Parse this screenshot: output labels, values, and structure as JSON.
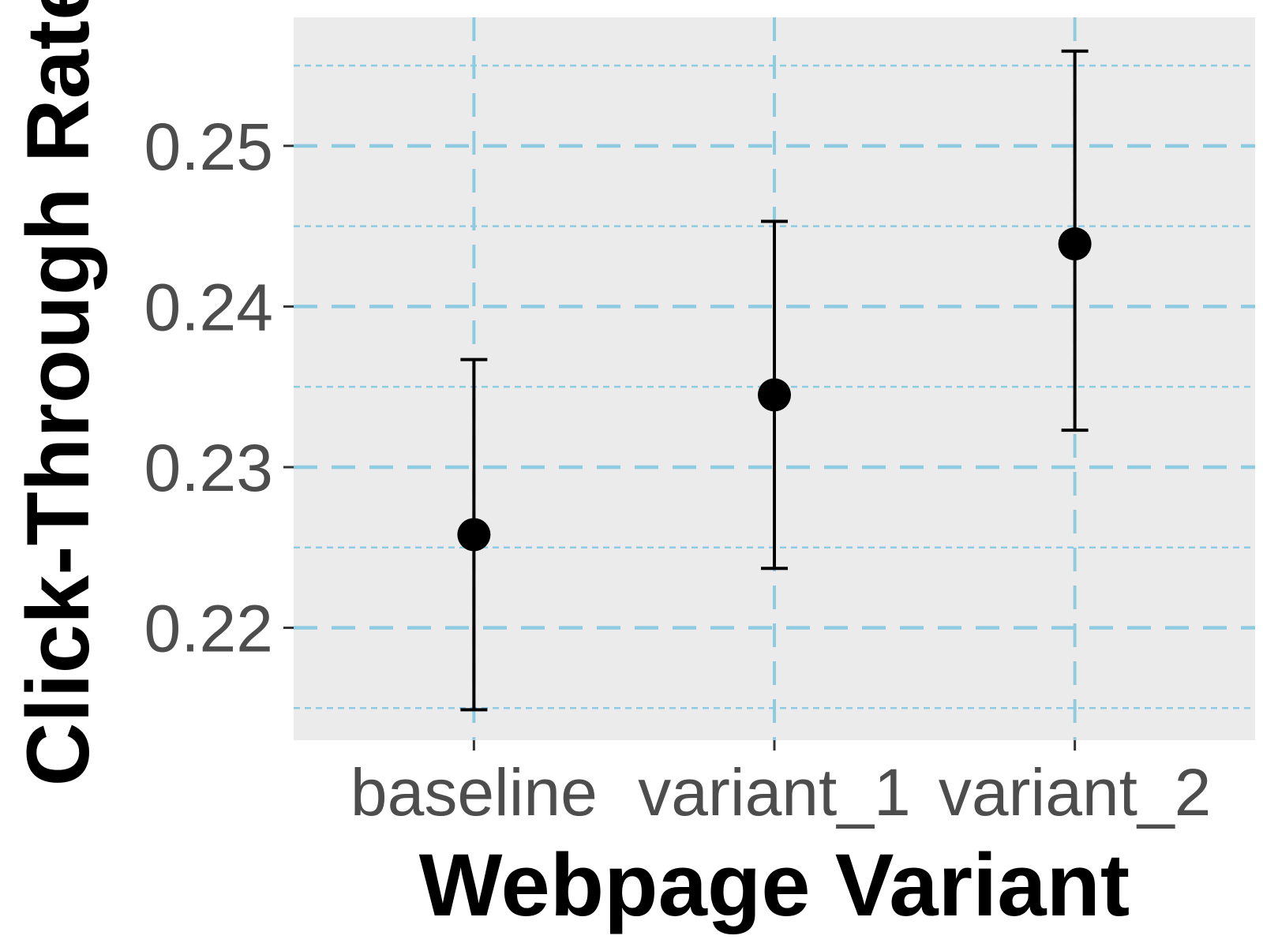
{
  "chart_data": {
    "type": "scatter",
    "title": "",
    "xlabel": "Webpage Variant",
    "ylabel": "Click-Through Rate",
    "categories": [
      "baseline",
      "variant_1",
      "variant_2"
    ],
    "series": [
      {
        "values": [
          0.2258,
          0.2345,
          0.2439
        ],
        "error_low": [
          0.2149,
          0.2237,
          0.2323
        ],
        "error_high": [
          0.2367,
          0.2453,
          0.2559
        ]
      }
    ],
    "ylim": [
      0.213,
      0.258
    ],
    "yticks": [
      0.22,
      0.23,
      0.24,
      0.25
    ],
    "ytick_labels": [
      "0.22",
      "0.23",
      "0.24",
      "0.25"
    ],
    "grid": true,
    "legend": "none"
  },
  "colors": {
    "panel_background": "#ebebeb",
    "grid_major": "#8ecbe0",
    "grid_minor": "#8ecbe0",
    "points": "#000000",
    "tick_text": "#4d4d4d",
    "title_text": "#000000"
  }
}
